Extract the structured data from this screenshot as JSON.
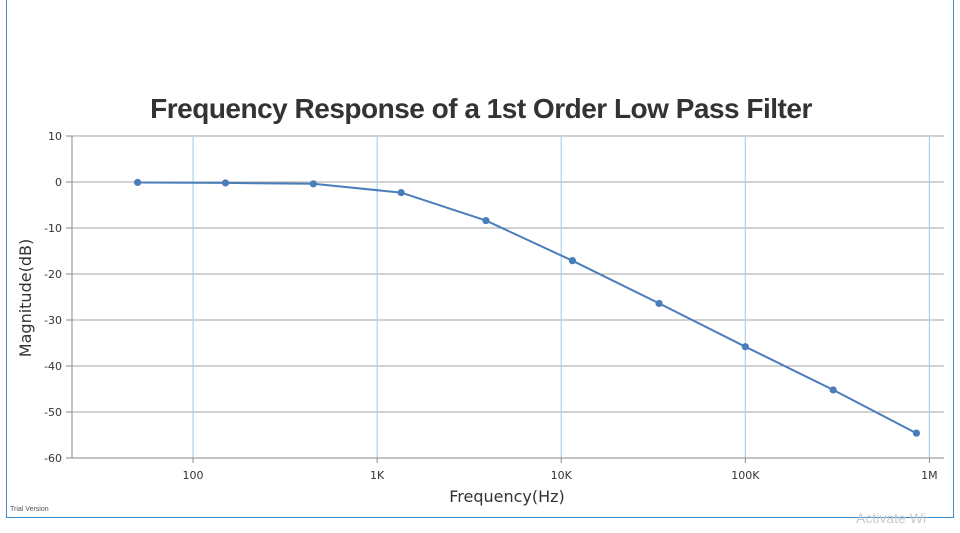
{
  "chart_data": {
    "type": "line",
    "title": "Frequency Response of a 1st Order Low Pass Filter",
    "xlabel": "Frequency(Hz)",
    "ylabel": "Magnitude(dB)",
    "x_scale": "log",
    "xlim": [
      22,
      1200000
    ],
    "ylim": [
      -60,
      10
    ],
    "x_ticks": [
      {
        "value": 100,
        "label": "100"
      },
      {
        "value": 1000,
        "label": "1K"
      },
      {
        "value": 10000,
        "label": "10K"
      },
      {
        "value": 100000,
        "label": "100K"
      },
      {
        "value": 1000000,
        "label": "1M"
      }
    ],
    "y_ticks": [
      10,
      0,
      -10,
      -20,
      -30,
      -40,
      -50,
      -60
    ],
    "grid": true,
    "colors": {
      "line": "#4a7ebb",
      "marker": "#4a7ebb",
      "hgrid": "#a6a6a6",
      "vgrid": "#a9d3ea"
    },
    "series": [
      {
        "x": [
          50,
          150,
          450,
          1350,
          3900,
          11500,
          34000,
          100000,
          300000,
          850000
        ],
        "y": [
          -0.1,
          -0.2,
          -0.4,
          -2.3,
          -8.4,
          -17.1,
          -26.4,
          -35.8,
          -45.2,
          -54.6
        ]
      }
    ]
  },
  "footer": {
    "trial_label": "Trial Version",
    "watermark": "Activate Wi"
  }
}
